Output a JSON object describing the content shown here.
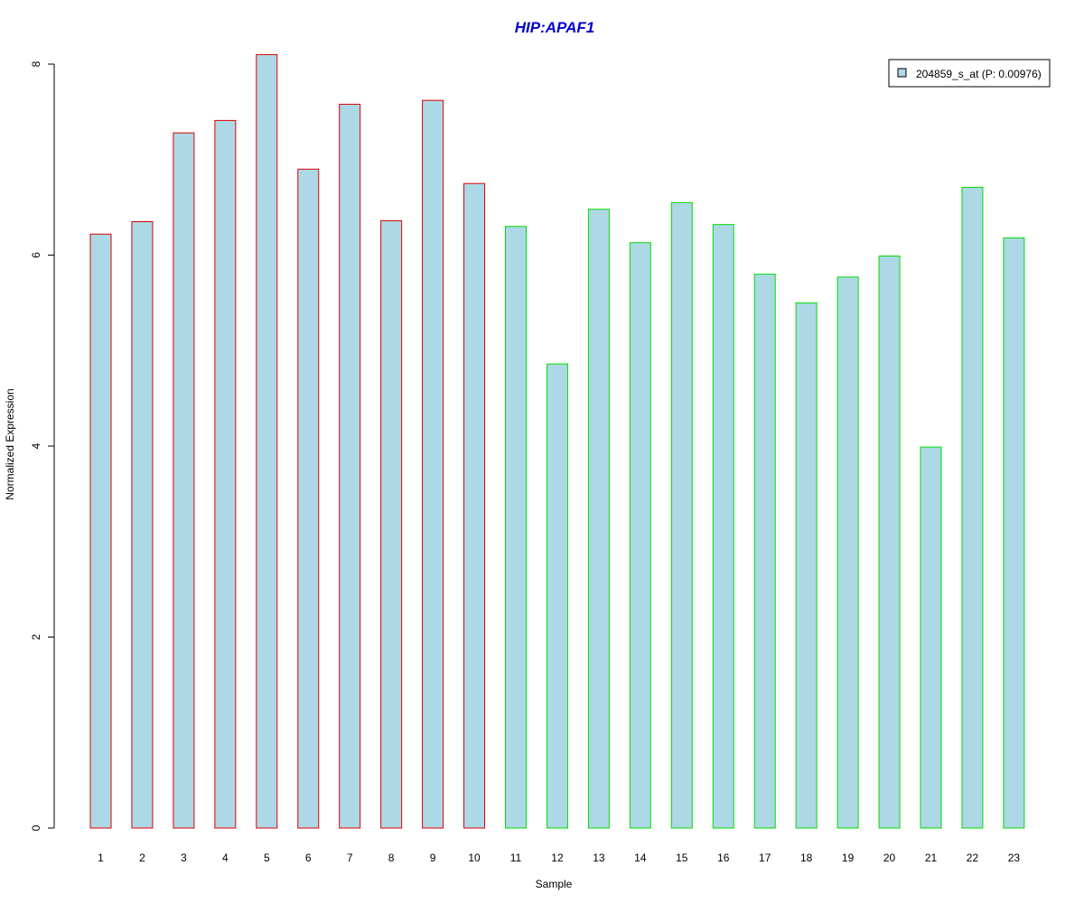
{
  "chart_data": {
    "type": "bar",
    "title": "HIP:APAF1",
    "xlabel": "Sample",
    "ylabel": "Normalized Expression",
    "ylim": [
      0,
      8
    ],
    "yticks": [
      "0",
      "2",
      "4",
      "6",
      "8"
    ],
    "categories": [
      "1",
      "2",
      "3",
      "4",
      "5",
      "6",
      "7",
      "8",
      "9",
      "10",
      "11",
      "12",
      "13",
      "14",
      "15",
      "16",
      "17",
      "18",
      "19",
      "20",
      "21",
      "22",
      "23"
    ],
    "series": [
      {
        "name": "204859_s_at (P: 0.00976)",
        "values": [
          6.22,
          6.35,
          7.28,
          7.41,
          8.1,
          6.9,
          7.58,
          6.36,
          7.62,
          6.75,
          6.3,
          4.86,
          6.48,
          6.13,
          6.55,
          6.32,
          5.8,
          5.5,
          5.77,
          5.99,
          3.99,
          6.71,
          6.18
        ]
      }
    ],
    "groups": [
      {
        "samples": [
          1,
          10
        ],
        "border_color": "#dd0000"
      },
      {
        "samples": [
          11,
          23
        ],
        "border_color": "#00dd00"
      }
    ],
    "fill_color": "#add8e6",
    "title_color": "#0000cc",
    "legend_position": "top-right",
    "grid": false
  }
}
